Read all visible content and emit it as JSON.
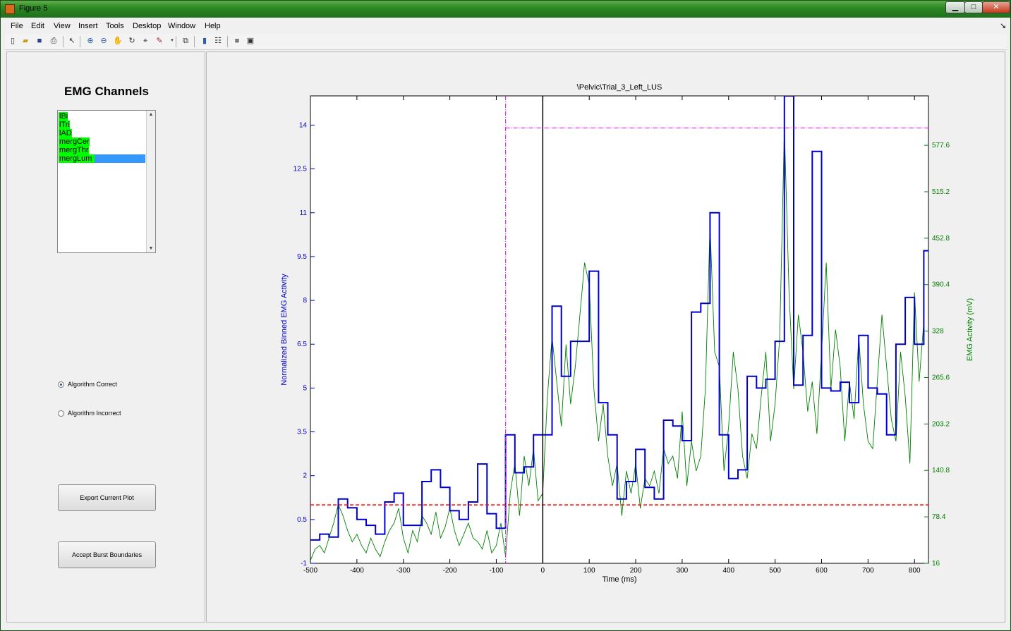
{
  "window": {
    "title": "Figure 5"
  },
  "menu": [
    "File",
    "Edit",
    "View",
    "Insert",
    "Tools",
    "Desktop",
    "Window",
    "Help"
  ],
  "toolbar_icons": [
    "new-figure-icon",
    "open-file-icon",
    "save-icon",
    "print-icon",
    "pointer-icon",
    "zoom-in-icon",
    "zoom-out-icon",
    "pan-icon",
    "rotate-icon",
    "data-cursor-icon",
    "brush-icon",
    "link-icon",
    "colorbar-icon",
    "legend-icon",
    "hide-tools-icon",
    "dock-icon"
  ],
  "left_panel": {
    "title": "EMG Channels",
    "channels": [
      {
        "label": "lBi",
        "color": "#00ff00",
        "selected": false
      },
      {
        "label": "lTri",
        "color": "#00ff00",
        "selected": false
      },
      {
        "label": "lAD",
        "color": "#00ff00",
        "selected": false
      },
      {
        "label": "mergCer",
        "color": "#00ff00",
        "selected": false
      },
      {
        "label": "mergThr",
        "color": "#00ff00",
        "selected": false
      },
      {
        "label": "mergLum",
        "color": "#00ff00",
        "selected": true
      }
    ],
    "radio_correct": "Algorithm Correct",
    "radio_incorrect": "Algorithm Incorrect",
    "radio_selected": "correct",
    "export_button": "Export Current Plot",
    "accept_button": "Accept Burst Boundaries"
  },
  "chart_data": {
    "type": "line",
    "title": "\\Pelvic\\Trial_3_Left_LUS",
    "xlabel": "Time (ms)",
    "ylabel_left": "Normalized Binned EMG Activity",
    "ylabel_right": "EMG Activity (mV)",
    "xlim": [
      -500,
      830
    ],
    "ylim_left": [
      -1,
      15
    ],
    "ylim_right": [
      16,
      644
    ],
    "x_ticks": [
      "-500",
      "-400",
      "-300",
      "-200",
      "-100",
      "0",
      "100",
      "200",
      "300",
      "400",
      "500",
      "600",
      "700",
      "800"
    ],
    "y_ticks_left": [
      "-1",
      "0.5",
      "2",
      "3.5",
      "5",
      "6.5",
      "8",
      "9.5",
      "11",
      "12.5",
      "14"
    ],
    "y_ticks_right": [
      "16",
      "78.4",
      "140.8",
      "203.2",
      "265.6",
      "328",
      "390.4",
      "452.8",
      "515.2",
      "577.6"
    ],
    "colors": {
      "binned": "#0000cc",
      "raw": "#008000",
      "threshold": "#ff0000",
      "boundary": "#ff00ff",
      "onset": "#000000"
    },
    "threshold_y": 1.0,
    "boundary_x": -80,
    "boundary_top_y": 13.9,
    "onset_x": 0,
    "binned_series": {
      "name": "Normalized Binned EMG Activity",
      "x": [
        -500,
        -480,
        -460,
        -440,
        -420,
        -400,
        -380,
        -360,
        -340,
        -320,
        -300,
        -280,
        -260,
        -240,
        -220,
        -200,
        -180,
        -160,
        -140,
        -120,
        -100,
        -80,
        -60,
        -40,
        -20,
        0,
        20,
        40,
        60,
        80,
        100,
        120,
        140,
        160,
        180,
        200,
        220,
        240,
        260,
        280,
        300,
        320,
        340,
        360,
        380,
        400,
        420,
        440,
        460,
        480,
        500,
        520,
        540,
        560,
        580,
        600,
        620,
        640,
        660,
        680,
        700,
        720,
        740,
        760,
        780,
        800,
        820
      ],
      "y": [
        -0.2,
        0.0,
        -0.1,
        1.2,
        0.9,
        0.5,
        0.3,
        0.0,
        1.1,
        1.4,
        0.3,
        0.3,
        1.8,
        2.2,
        1.6,
        0.8,
        0.5,
        1.1,
        2.4,
        0.7,
        0.2,
        3.4,
        2.1,
        2.3,
        3.4,
        3.4,
        7.8,
        5.4,
        6.6,
        6.6,
        9.0,
        4.5,
        3.4,
        1.2,
        1.8,
        2.9,
        1.6,
        1.2,
        3.9,
        3.7,
        3.2,
        7.6,
        7.9,
        11.0,
        3.4,
        1.9,
        2.2,
        5.4,
        5.0,
        5.3,
        6.6,
        15.0,
        5.1,
        6.8,
        13.1,
        5.0,
        4.9,
        5.2,
        4.5,
        6.8,
        5.0,
        4.8,
        3.4,
        6.5,
        8.1,
        6.5,
        9.7
      ]
    },
    "raw_series": {
      "name": "EMG Activity (mV)",
      "x": [
        -500,
        -490,
        -480,
        -470,
        -460,
        -450,
        -440,
        -430,
        -420,
        -410,
        -400,
        -390,
        -380,
        -370,
        -360,
        -350,
        -340,
        -330,
        -320,
        -310,
        -300,
        -290,
        -280,
        -270,
        -260,
        -250,
        -240,
        -230,
        -220,
        -210,
        -200,
        -190,
        -180,
        -170,
        -160,
        -150,
        -140,
        -130,
        -120,
        -110,
        -100,
        -90,
        -80,
        -70,
        -60,
        -50,
        -40,
        -30,
        -20,
        -10,
        0,
        10,
        20,
        30,
        40,
        50,
        60,
        70,
        80,
        90,
        100,
        110,
        120,
        130,
        140,
        150,
        160,
        170,
        180,
        190,
        200,
        210,
        220,
        230,
        240,
        250,
        260,
        270,
        280,
        290,
        300,
        310,
        320,
        330,
        340,
        350,
        360,
        370,
        380,
        390,
        400,
        410,
        420,
        430,
        440,
        450,
        460,
        470,
        480,
        490,
        500,
        510,
        520,
        530,
        540,
        550,
        560,
        570,
        580,
        590,
        600,
        610,
        620,
        630,
        640,
        650,
        660,
        670,
        680,
        690,
        700,
        710,
        720,
        730,
        740,
        750,
        760,
        770,
        780,
        790,
        800,
        810,
        820
      ],
      "y": [
        20,
        35,
        40,
        30,
        50,
        70,
        95,
        80,
        60,
        45,
        55,
        40,
        30,
        50,
        35,
        25,
        45,
        60,
        70,
        90,
        50,
        30,
        60,
        45,
        80,
        70,
        55,
        85,
        50,
        65,
        90,
        60,
        40,
        55,
        70,
        50,
        45,
        35,
        60,
        30,
        40,
        70,
        25,
        110,
        150,
        80,
        160,
        120,
        170,
        100,
        110,
        240,
        320,
        260,
        200,
        310,
        230,
        280,
        350,
        420,
        390,
        250,
        180,
        230,
        160,
        120,
        150,
        80,
        140,
        110,
        150,
        90,
        130,
        120,
        140,
        110,
        170,
        150,
        160,
        130,
        220,
        120,
        180,
        140,
        160,
        250,
        470,
        300,
        280,
        140,
        200,
        300,
        250,
        160,
        130,
        190,
        170,
        240,
        300,
        180,
        230,
        320,
        600,
        380,
        250,
        350,
        300,
        220,
        260,
        190,
        300,
        420,
        250,
        330,
        280,
        180,
        260,
        210,
        320,
        230,
        180,
        170,
        260,
        350,
        280,
        210,
        180,
        300,
        240,
        150,
        380,
        260,
        340
      ]
    }
  }
}
